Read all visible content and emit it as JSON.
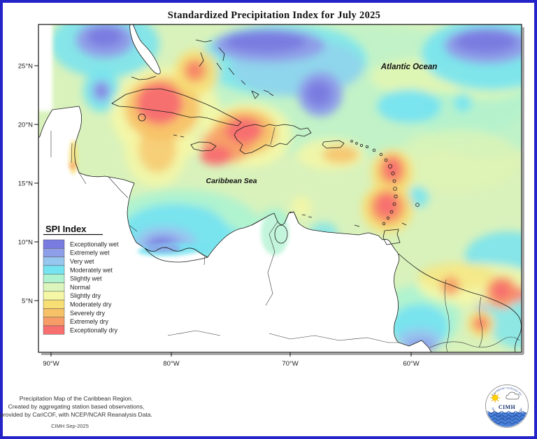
{
  "title": "Standardized Precipitation Index for July 2025",
  "map": {
    "labels": {
      "atlantic_ocean": "Atlantic Ocean",
      "caribbean_sea": "Caribbean Sea"
    },
    "y_axis": {
      "ticks": [
        "25°N",
        "20°N",
        "15°N",
        "10°N",
        "5°N"
      ]
    },
    "x_axis": {
      "ticks": [
        "90°W",
        "80°W",
        "70°W",
        "60°W"
      ]
    }
  },
  "legend": {
    "title": "SPI Index",
    "items": [
      {
        "label": "Exceptionally wet",
        "color": "#7a7be0"
      },
      {
        "label": "Extremely wet",
        "color": "#8f9ee8"
      },
      {
        "label": "Very wet",
        "color": "#97c6ef"
      },
      {
        "label": "Moderately wet",
        "color": "#76e3f0"
      },
      {
        "label": "Slightly wet",
        "color": "#aef2d0"
      },
      {
        "label": "Normal",
        "color": "#dbf5bc"
      },
      {
        "label": "Slightly dry",
        "color": "#f5f7a6"
      },
      {
        "label": "Moderately dry",
        "color": "#f7df75"
      },
      {
        "label": "Severely dry",
        "color": "#f7c168"
      },
      {
        "label": "Extremely dry",
        "color": "#f79c66"
      },
      {
        "label": "Exceptionally dry",
        "color": "#f76f6f"
      }
    ]
  },
  "footer": {
    "lines": [
      "Precipitation Map of the Caribbean Region.",
      "Created by aggregating station based observations,",
      "provided by CariCOF, with NCEP/NCAR Reanalysis Data."
    ],
    "credit": "CIMH Sep-2025"
  },
  "logo": {
    "text": "CIMH",
    "arc_top": "Caribbean Institute for",
    "arc_bottom": "Meteorology and Hydrology"
  },
  "colors": {
    "page_border": "#2323c8",
    "map_base": "#d9f2bc",
    "logo_wave": "#4a80d8"
  }
}
